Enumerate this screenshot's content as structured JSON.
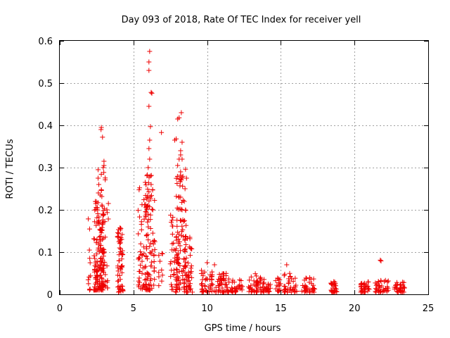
{
  "chart_data": {
    "type": "scatter",
    "title": "Day 093 of 2018, Rate Of TEC Index for receiver yell",
    "xlabel": "GPS time / hours",
    "ylabel": "ROTI / TECUs",
    "xlim": [
      0,
      25
    ],
    "ylim": [
      0,
      0.6
    ],
    "x_ticks": [
      0,
      5,
      10,
      15,
      20,
      25
    ],
    "x_tick_labels": [
      "0",
      "5",
      "10",
      "15",
      "20",
      "25"
    ],
    "y_ticks": [
      0,
      0.1,
      0.2,
      0.3,
      0.4,
      0.5,
      0.6
    ],
    "y_tick_labels": [
      "0",
      "0.1",
      "0.2",
      "0.3",
      "0.4",
      "0.5",
      "0.6"
    ],
    "grid": true,
    "marker": "plus",
    "marker_color": "#ee0000",
    "clusters": [
      {
        "x_range": [
          1.9,
          2.1
        ],
        "y_min": 0.01,
        "y_max": 0.19,
        "n": 12
      },
      {
        "x_range": [
          2.3,
          3.0
        ],
        "y_min": 0.01,
        "y_max": 0.22,
        "n": 150
      },
      {
        "x_range": [
          2.8,
          3.1
        ],
        "y_min": 0.01,
        "y_max": 0.32,
        "n": 20
      },
      {
        "x_range": [
          3.0,
          3.3
        ],
        "y_min": 0.01,
        "y_max": 0.21,
        "n": 12
      },
      {
        "x_range": [
          3.9,
          4.3
        ],
        "y_min": 0.005,
        "y_max": 0.16,
        "n": 60
      },
      {
        "x_range": [
          5.3,
          6.0
        ],
        "y_min": 0.01,
        "y_max": 0.26,
        "n": 60
      },
      {
        "x_range": [
          5.8,
          6.5
        ],
        "y_min": 0.01,
        "y_max": 0.29,
        "n": 80
      },
      {
        "x_range": [
          6.7,
          7.0
        ],
        "y_min": 0.02,
        "y_max": 0.12,
        "n": 10
      },
      {
        "x_range": [
          7.5,
          8.0
        ],
        "y_min": 0.005,
        "y_max": 0.19,
        "n": 40
      },
      {
        "x_range": [
          7.9,
          8.6
        ],
        "y_min": 0.01,
        "y_max": 0.3,
        "n": 90
      },
      {
        "x_range": [
          8.4,
          9.0
        ],
        "y_min": 0.005,
        "y_max": 0.14,
        "n": 50
      },
      {
        "x_range": [
          9.6,
          10.4
        ],
        "y_min": 0.005,
        "y_max": 0.06,
        "n": 40
      },
      {
        "x_range": [
          10.4,
          11.4
        ],
        "y_min": 0.005,
        "y_max": 0.05,
        "n": 45
      },
      {
        "x_range": [
          11.4,
          12.4
        ],
        "y_min": 0.005,
        "y_max": 0.04,
        "n": 35
      },
      {
        "x_range": [
          12.8,
          13.4
        ],
        "y_min": 0.005,
        "y_max": 0.05,
        "n": 30
      },
      {
        "x_range": [
          13.4,
          14.3
        ],
        "y_min": 0.005,
        "y_max": 0.04,
        "n": 40
      },
      {
        "x_range": [
          14.6,
          15.0
        ],
        "y_min": 0.005,
        "y_max": 0.04,
        "n": 15
      },
      {
        "x_range": [
          15.2,
          16.1
        ],
        "y_min": 0.005,
        "y_max": 0.05,
        "n": 40
      },
      {
        "x_range": [
          16.4,
          17.3
        ],
        "y_min": 0.005,
        "y_max": 0.04,
        "n": 35
      },
      {
        "x_range": [
          18.4,
          18.8
        ],
        "y_min": 0.005,
        "y_max": 0.03,
        "n": 25
      },
      {
        "x_range": [
          20.4,
          21.0
        ],
        "y_min": 0.005,
        "y_max": 0.03,
        "n": 30
      },
      {
        "x_range": [
          21.4,
          22.3
        ],
        "y_min": 0.005,
        "y_max": 0.035,
        "n": 40
      },
      {
        "x_range": [
          22.7,
          23.4
        ],
        "y_min": 0.005,
        "y_max": 0.03,
        "n": 35
      }
    ],
    "points": [
      [
        2.8,
        0.39
      ],
      [
        2.82,
        0.395
      ],
      [
        2.9,
        0.372
      ],
      [
        3.0,
        0.315
      ],
      [
        3.0,
        0.305
      ],
      [
        2.95,
        0.3
      ],
      [
        2.6,
        0.295
      ],
      [
        2.6,
        0.275
      ],
      [
        2.65,
        0.26
      ],
      [
        2.62,
        0.24
      ],
      [
        2.75,
        0.235
      ],
      [
        3.3,
        0.215
      ],
      [
        2.55,
        0.205
      ],
      [
        3.2,
        0.2
      ],
      [
        6.1,
        0.575
      ],
      [
        6.05,
        0.55
      ],
      [
        6.05,
        0.53
      ],
      [
        6.2,
        0.478
      ],
      [
        6.25,
        0.476
      ],
      [
        6.05,
        0.445
      ],
      [
        6.15,
        0.397
      ],
      [
        6.9,
        0.383
      ],
      [
        6.1,
        0.365
      ],
      [
        6.05,
        0.345
      ],
      [
        6.1,
        0.32
      ],
      [
        6.0,
        0.3
      ],
      [
        6.15,
        0.28
      ],
      [
        6.2,
        0.26
      ],
      [
        5.8,
        0.265
      ],
      [
        8.25,
        0.43
      ],
      [
        8.1,
        0.418
      ],
      [
        8.0,
        0.415
      ],
      [
        7.9,
        0.368
      ],
      [
        7.8,
        0.365
      ],
      [
        8.3,
        0.36
      ],
      [
        8.2,
        0.34
      ],
      [
        8.2,
        0.33
      ],
      [
        8.1,
        0.32
      ],
      [
        8.3,
        0.32
      ],
      [
        8.0,
        0.305
      ],
      [
        8.2,
        0.29
      ],
      [
        8.6,
        0.275
      ],
      [
        8.5,
        0.25
      ],
      [
        8.2,
        0.23
      ],
      [
        8.45,
        0.22
      ],
      [
        8.3,
        0.2
      ],
      [
        21.75,
        0.081
      ],
      [
        21.8,
        0.079
      ],
      [
        15.4,
        0.07
      ],
      [
        10.0,
        0.075
      ],
      [
        10.5,
        0.07
      ]
    ]
  }
}
